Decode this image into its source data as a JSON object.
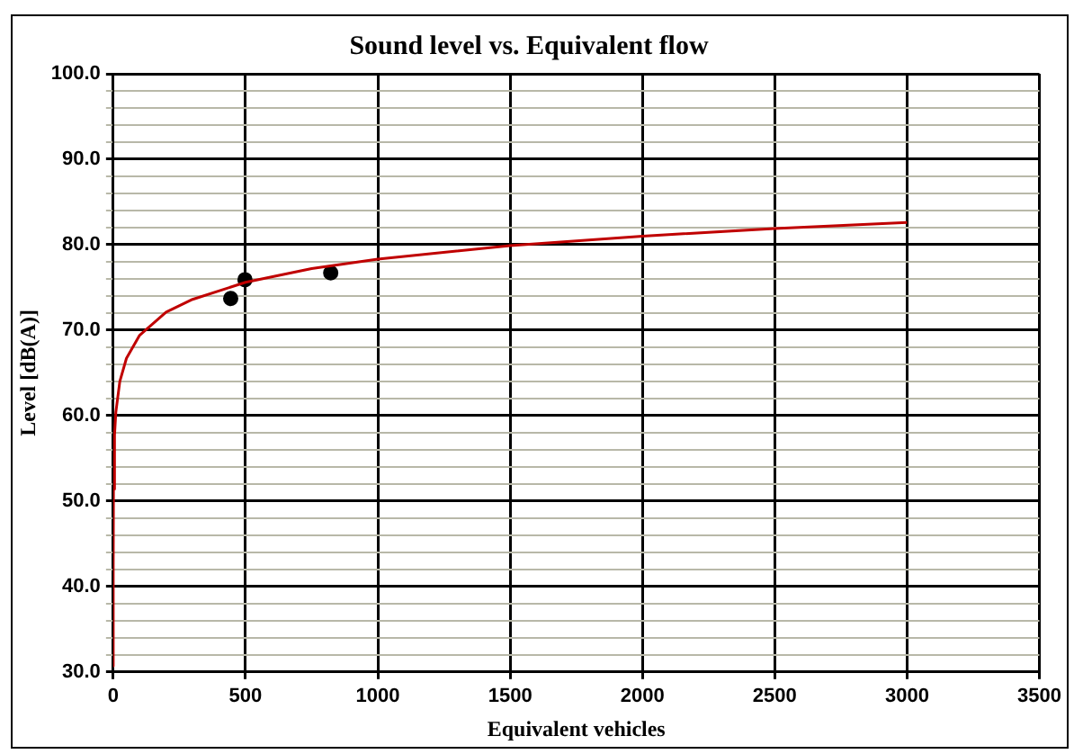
{
  "chart_data": {
    "type": "scatter",
    "title": "Sound level vs. Equivalent flow",
    "xlabel": "Equivalent vehicles",
    "ylabel": "Level [dB(A)]",
    "xlim": [
      0,
      3500
    ],
    "xticks": [
      0,
      500,
      1000,
      1500,
      2000,
      2500,
      3000,
      3500
    ],
    "ylim": [
      30,
      100
    ],
    "yticks": [
      {
        "value": 30,
        "label": "30.0"
      },
      {
        "value": 32,
        "label": null
      },
      {
        "value": 34,
        "label": null
      },
      {
        "value": 36,
        "label": null
      },
      {
        "value": 38,
        "label": null
      },
      {
        "value": 40,
        "label": "40.0"
      },
      {
        "value": 42,
        "label": null
      },
      {
        "value": 44,
        "label": null
      },
      {
        "value": 46,
        "label": null
      },
      {
        "value": 48,
        "label": null
      },
      {
        "value": 50,
        "label": "50.0"
      },
      {
        "value": 52,
        "label": null
      },
      {
        "value": 54,
        "label": null
      },
      {
        "value": 56,
        "label": null
      },
      {
        "value": 58,
        "label": null
      },
      {
        "value": 60,
        "label": "60.0"
      },
      {
        "value": 62,
        "label": null
      },
      {
        "value": 64,
        "label": null
      },
      {
        "value": 66,
        "label": null
      },
      {
        "value": 68,
        "label": null
      },
      {
        "value": 70,
        "label": "70.0"
      },
      {
        "value": 72,
        "label": null
      },
      {
        "value": 74,
        "label": null
      },
      {
        "value": 76,
        "label": null
      },
      {
        "value": 78,
        "label": null
      },
      {
        "value": 80,
        "label": "80.0"
      },
      {
        "value": 82,
        "label": null
      },
      {
        "value": 84,
        "label": null
      },
      {
        "value": 86,
        "label": null
      },
      {
        "value": 88,
        "label": null
      },
      {
        "value": 90,
        "label": "90.0"
      },
      {
        "value": 92,
        "label": null
      },
      {
        "value": 94,
        "label": null
      },
      {
        "value": 96,
        "label": null
      },
      {
        "value": 98,
        "label": null
      },
      {
        "value": 100,
        "label": "100.0"
      }
    ],
    "grid": true,
    "legend": false,
    "series": [
      {
        "type": "line",
        "color": "#c00000",
        "marker": "none",
        "line_style": "solid",
        "x": [
          0.005,
          0.1,
          1,
          5,
          10,
          25,
          50,
          100,
          200,
          300,
          500,
          750,
          1000,
          1500,
          2000,
          2500,
          3000
        ],
        "values": [
          30.7,
          42.4,
          51.4,
          57.7,
          60.4,
          64,
          66.7,
          69.4,
          72.1,
          73.6,
          75.6,
          77.2,
          78.3,
          79.9,
          81,
          81.9,
          82.6
        ]
      },
      {
        "color": "#000000",
        "marker": "circle",
        "x": [
          444,
          498,
          822
        ],
        "values": [
          73.7,
          75.9,
          76.7
        ]
      }
    ]
  }
}
